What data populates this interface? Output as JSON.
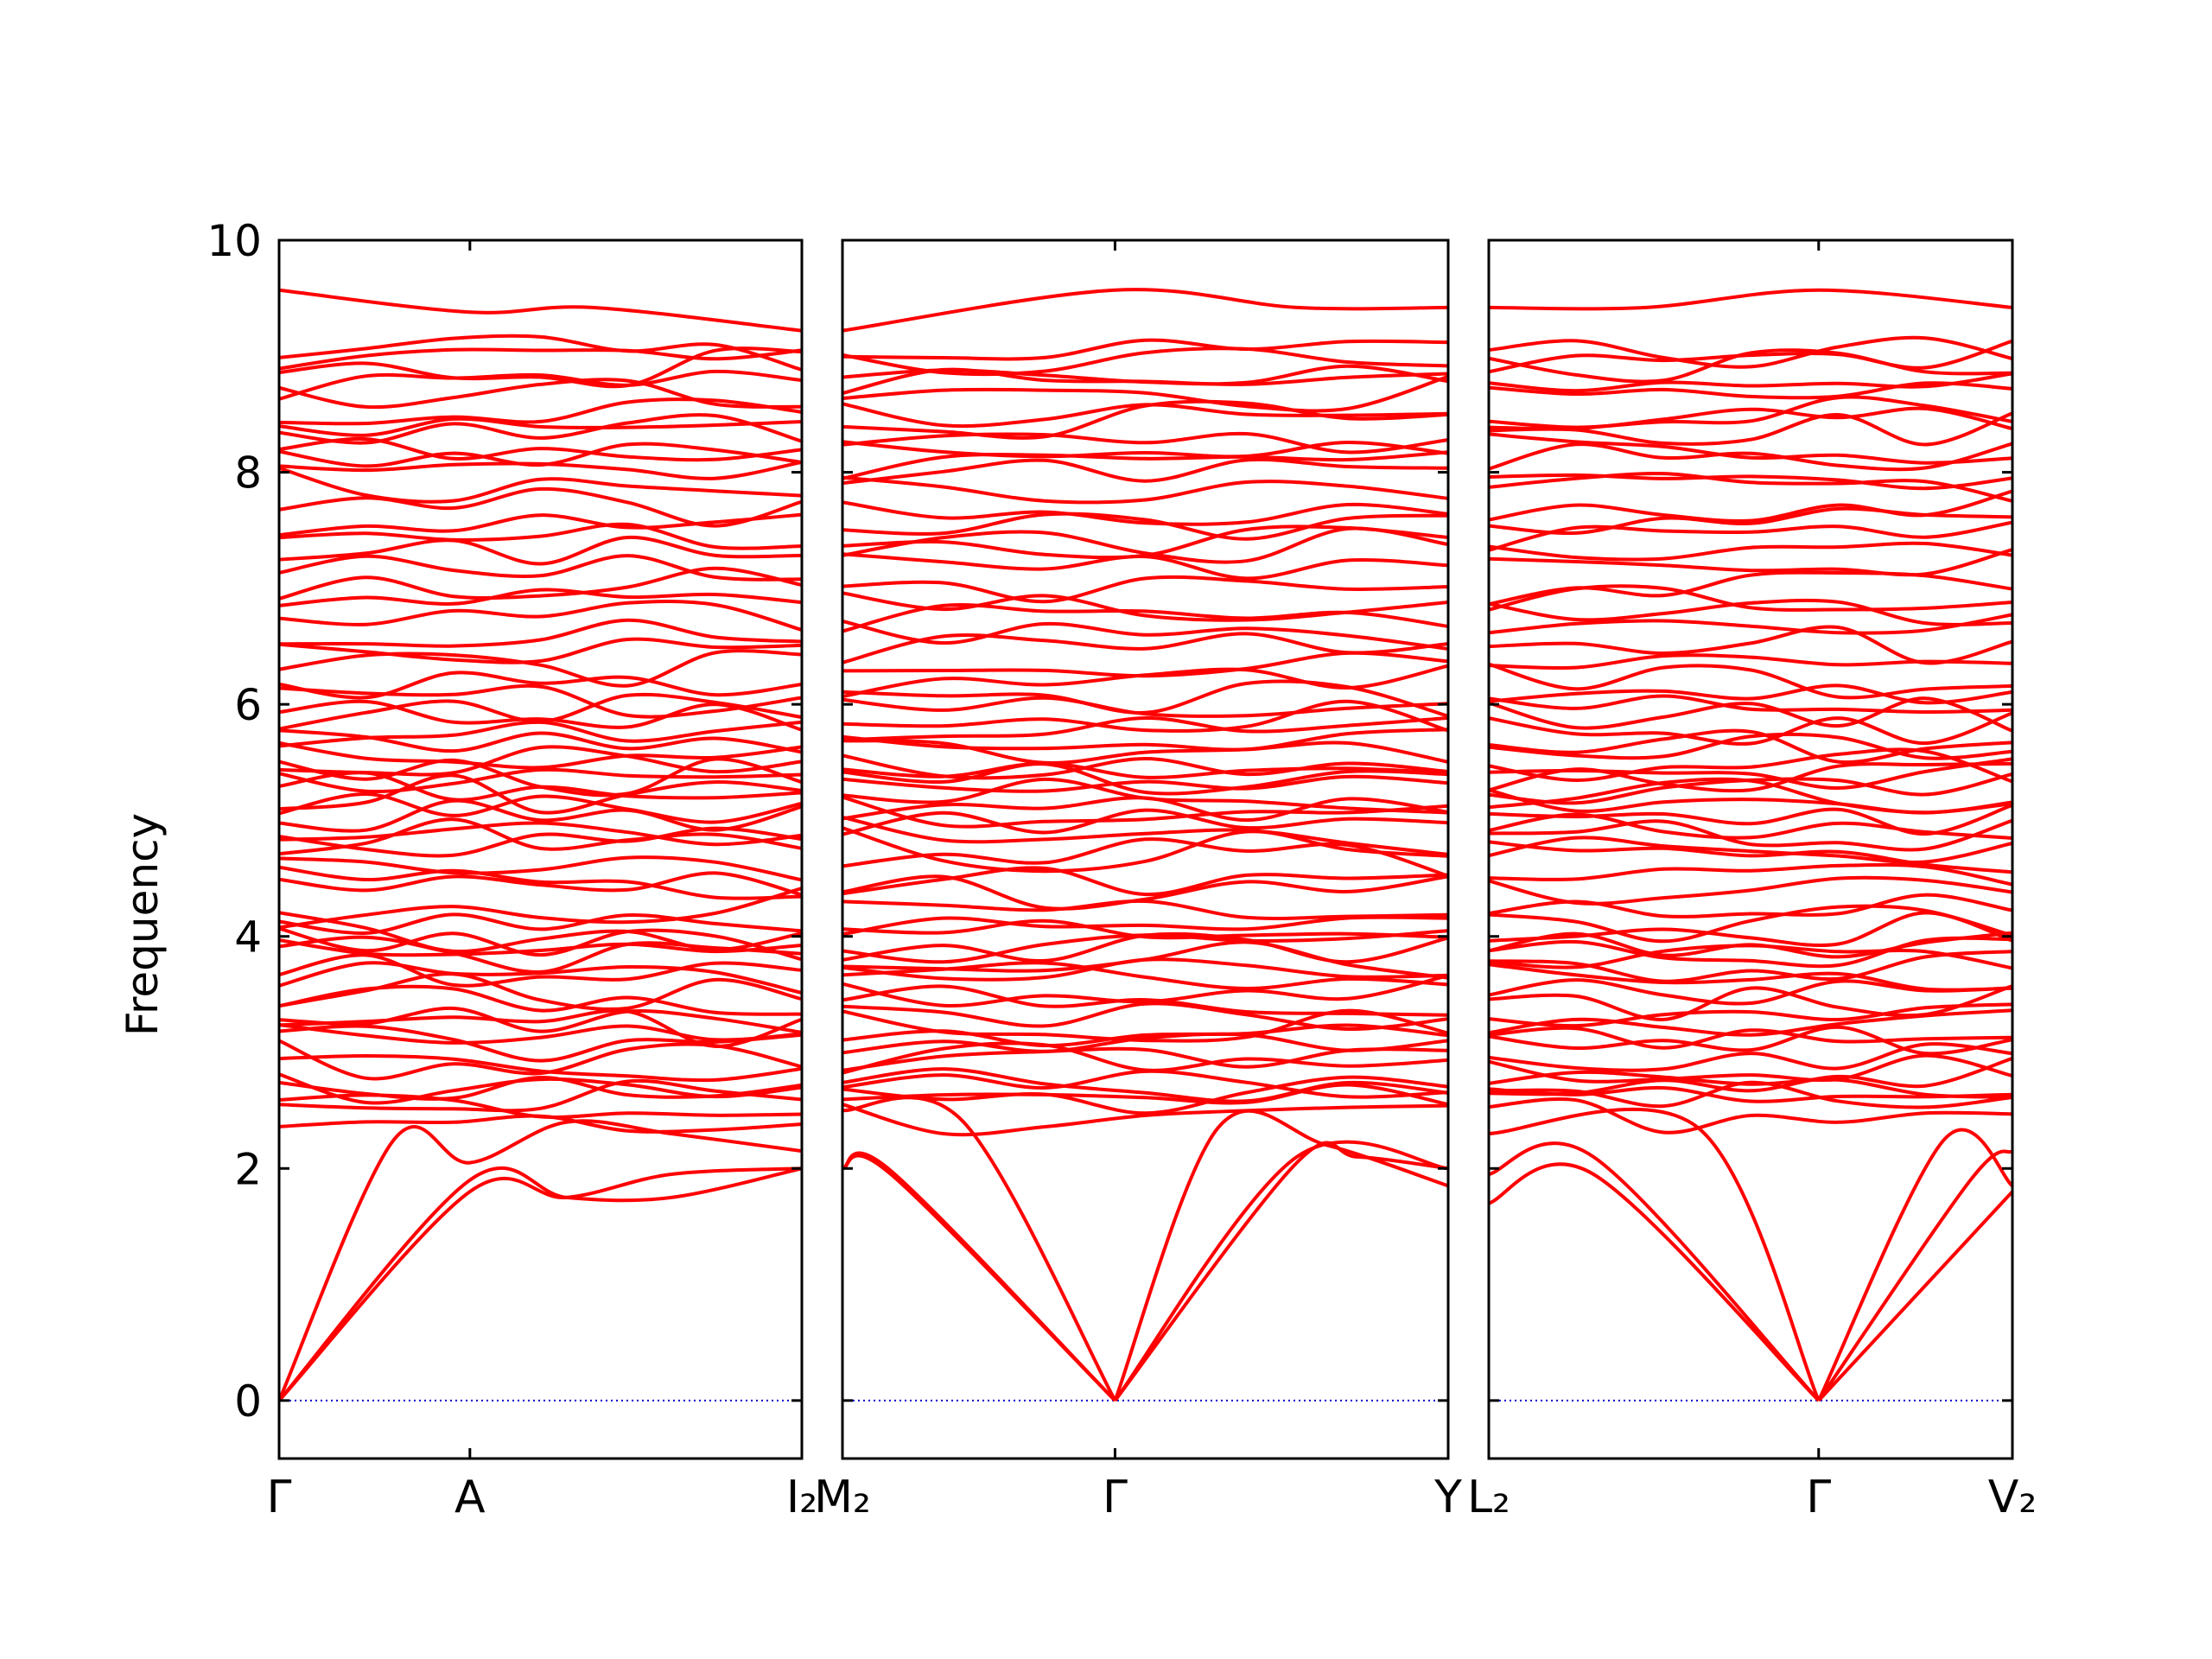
{
  "chart_data": {
    "type": "line",
    "ylabel": "Frequency",
    "ylim": [
      -0.5,
      10.0
    ],
    "yticks": [
      0,
      2,
      4,
      6,
      8,
      10
    ],
    "grid": false,
    "legend": "none",
    "zero_line": {
      "y": 0,
      "style": "dotted",
      "color": "#0000cc"
    },
    "band_color": "#ff0000",
    "panels": [
      {
        "xtick_labels": [
          "Γ",
          "A",
          "I₂"
        ],
        "xtick_positions": [
          0,
          0.365,
          1
        ],
        "acoustic": [
          {
            "x": [
              0,
              0.22,
              0.365,
              0.55,
              0.75,
              1
            ],
            "y": [
              0,
              2.25,
              2.05,
              2.4,
              2.3,
              2.15
            ]
          },
          {
            "x": [
              0,
              0.365,
              0.55,
              0.75,
              1
            ],
            "y": [
              0,
              1.9,
              1.75,
              1.75,
              2.0
            ]
          },
          {
            "x": [
              0,
              0.365,
              0.55,
              0.75,
              1
            ],
            "y": [
              0,
              1.8,
              1.75,
              1.95,
              2.0
            ]
          }
        ],
        "top_band": {
          "x": [
            0,
            0.365,
            0.6,
            1
          ],
          "y": [
            9.57,
            9.38,
            9.42,
            9.22
          ]
        }
      },
      {
        "xtick_labels": [
          "M₂",
          "Γ",
          "Y"
        ],
        "xtick_positions": [
          0,
          0.45,
          1
        ],
        "acoustic": [
          {
            "x": [
              0,
              0.08,
              0.45
            ],
            "y": [
              2.0,
              1.95,
              0
            ]
          },
          {
            "x": [
              0,
              0.08,
              0.45
            ],
            "y": [
              2.0,
              1.98,
              0
            ]
          },
          {
            "x": [
              0,
              0.2,
              0.45
            ],
            "y": [
              2.5,
              2.4,
              0
            ]
          },
          {
            "x": [
              0.45,
              0.62,
              0.8,
              1
            ],
            "y": [
              0,
              2.35,
              2.2,
              1.85
            ]
          },
          {
            "x": [
              0.45,
              0.75,
              0.85,
              1
            ],
            "y": [
              0,
              2.05,
              2.1,
              2.0
            ]
          },
          {
            "x": [
              0.45,
              0.75,
              1
            ],
            "y": [
              0,
              2.1,
              2.0
            ]
          }
        ],
        "top_band": {
          "x": [
            0,
            0.45,
            0.75,
            1
          ],
          "y": [
            9.22,
            9.57,
            9.42,
            9.42
          ]
        }
      },
      {
        "xtick_labels": [
          "L₂",
          "Γ",
          "V₂"
        ],
        "xtick_positions": [
          0,
          0.63,
          1
        ],
        "acoustic": [
          {
            "x": [
              0,
              0.2,
              0.63
            ],
            "y": [
              1.7,
              1.95,
              0
            ]
          },
          {
            "x": [
              0,
              0.2,
              0.63
            ],
            "y": [
              1.95,
              2.1,
              0
            ]
          },
          {
            "x": [
              0,
              0.4,
              0.63
            ],
            "y": [
              2.3,
              2.35,
              0
            ]
          },
          {
            "x": [
              0.63,
              0.87,
              1
            ],
            "y": [
              0,
              2.25,
              1.85
            ]
          },
          {
            "x": [
              0.63,
              0.92,
              1
            ],
            "y": [
              0,
              1.9,
              2.15
            ]
          },
          {
            "x": [
              0.63,
              1
            ],
            "y": [
              0,
              1.8
            ]
          }
        ],
        "top_band": {
          "x": [
            0,
            0.3,
            0.63,
            1
          ],
          "y": [
            9.42,
            9.42,
            9.57,
            9.42
          ]
        }
      }
    ],
    "optical_band_centers": [
      2.45,
      2.55,
      2.62,
      2.7,
      2.78,
      2.88,
      2.95,
      3.05,
      3.15,
      3.22,
      3.32,
      3.42,
      3.55,
      3.65,
      3.72,
      3.8,
      3.88,
      3.95,
      4.02,
      4.1,
      4.25,
      4.4,
      4.5,
      4.65,
      4.75,
      4.85,
      4.95,
      5.05,
      5.12,
      5.2,
      5.28,
      5.35,
      5.42,
      5.5,
      5.58,
      5.68,
      5.78,
      5.88,
      5.95,
      6.05,
      6.2,
      6.35,
      6.5,
      6.62,
      6.75,
      6.88,
      7.0,
      7.2,
      7.35,
      7.45,
      7.58,
      7.7,
      7.85,
      8.0,
      8.1,
      8.22,
      8.35,
      8.45,
      8.55,
      8.65,
      8.78,
      8.88,
      8.98,
      9.05
    ]
  }
}
